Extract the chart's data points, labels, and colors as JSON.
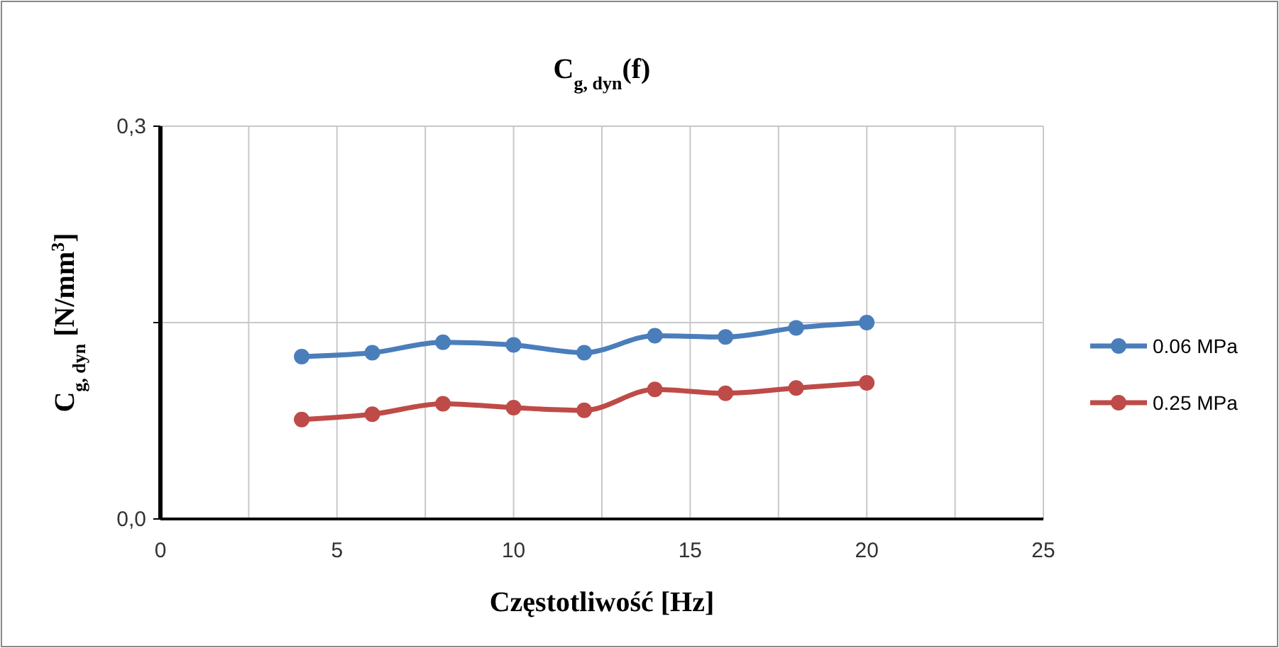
{
  "chart_data": {
    "type": "line",
    "title": "C$_{g, dyn}$(f)",
    "xlabel": "Częstotliwość [Hz]",
    "ylabel": "C$_{g, dyn}$ [N/mm$^{3}$]",
    "x": [
      4,
      6,
      8,
      10,
      12,
      14,
      16,
      18,
      20
    ],
    "series": [
      {
        "name": "0.06 MPa",
        "color": "#4a7ebb",
        "values": [
          0.124,
          0.127,
          0.135,
          0.133,
          0.127,
          0.14,
          0.139,
          0.146,
          0.15
        ]
      },
      {
        "name": "0.25 MPa",
        "color": "#be4b48",
        "values": [
          0.076,
          0.08,
          0.088,
          0.085,
          0.083,
          0.099,
          0.096,
          0.1,
          0.104
        ]
      }
    ],
    "xlim": [
      0,
      25
    ],
    "xticks": [
      0,
      {
        "value": 2.5,
        "label": null
      },
      5,
      {
        "value": 7.5,
        "label": null
      },
      10,
      {
        "value": 12.5,
        "label": null
      },
      15,
      {
        "value": 17.5,
        "label": null
      },
      20,
      {
        "value": 22.5,
        "label": null
      },
      25
    ],
    "ylim": [
      0,
      0.3
    ],
    "yticks": [
      {
        "value": 0,
        "label": "0,0"
      },
      {
        "value": 0.15,
        "label": null
      },
      {
        "value": 0.3,
        "label": "0,3"
      }
    ],
    "grid": true,
    "legend": "right",
    "marker": "circle",
    "line_style": "solid"
  }
}
